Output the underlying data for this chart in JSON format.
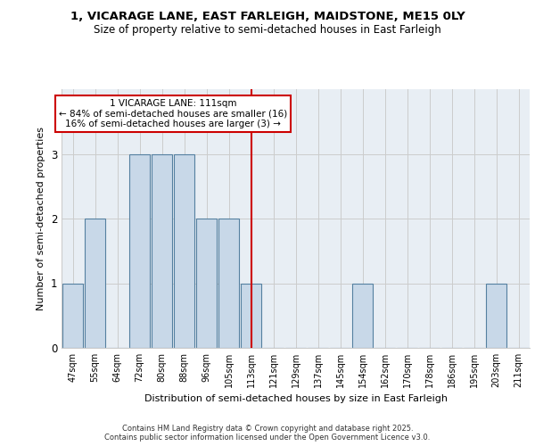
{
  "title_line1": "1, VICARAGE LANE, EAST FARLEIGH, MAIDSTONE, ME15 0LY",
  "title_line2": "Size of property relative to semi-detached houses in East Farleigh",
  "xlabel": "Distribution of semi-detached houses by size in East Farleigh",
  "ylabel": "Number of semi-detached properties",
  "categories": [
    "47sqm",
    "55sqm",
    "64sqm",
    "72sqm",
    "80sqm",
    "88sqm",
    "96sqm",
    "105sqm",
    "113sqm",
    "121sqm",
    "129sqm",
    "137sqm",
    "145sqm",
    "154sqm",
    "162sqm",
    "170sqm",
    "178sqm",
    "186sqm",
    "195sqm",
    "203sqm",
    "211sqm"
  ],
  "values": [
    1,
    2,
    0,
    3,
    3,
    3,
    2,
    2,
    1,
    0,
    0,
    0,
    0,
    1,
    0,
    0,
    0,
    0,
    0,
    1,
    0
  ],
  "highlight_index": 8,
  "annotation_title": "1 VICARAGE LANE: 111sqm",
  "annotation_line2": "← 84% of semi-detached houses are smaller (16)",
  "annotation_line3": "16% of semi-detached houses are larger (3) →",
  "bar_color": "#c8d8e8",
  "bar_edge_color": "#5580a0",
  "highlight_line_color": "#cc0000",
  "annotation_box_edge_color": "#cc0000",
  "background_color": "#e8eef4",
  "grid_color": "#cccccc",
  "ylim": [
    0,
    4
  ],
  "yticks": [
    0,
    1,
    2,
    3
  ],
  "footer_line1": "Contains HM Land Registry data © Crown copyright and database right 2025.",
  "footer_line2": "Contains public sector information licensed under the Open Government Licence v3.0."
}
